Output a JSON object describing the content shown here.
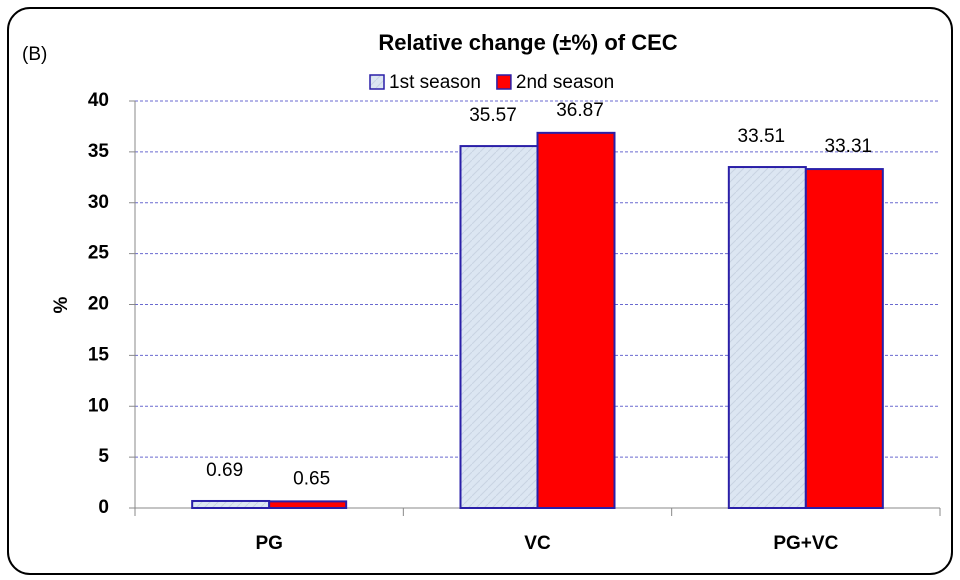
{
  "chart_data": {
    "type": "bar",
    "panel_label": "(B)",
    "title": "Relative change (±%) of CEC",
    "y_label": "%",
    "categories": [
      "PG",
      "VC",
      "PG+VC"
    ],
    "series": [
      {
        "name": "1st season",
        "color": "#dce6f2",
        "values": [
          0.69,
          35.57,
          33.51
        ]
      },
      {
        "name": "2nd season",
        "color": "#ff0000",
        "values": [
          0.65,
          36.87,
          33.31
        ]
      }
    ],
    "ylim": [
      0,
      40
    ],
    "yticks": [
      0,
      5,
      10,
      15,
      20,
      25,
      30,
      35,
      40
    ],
    "grid": true,
    "legend": "top",
    "data_labels": true
  }
}
